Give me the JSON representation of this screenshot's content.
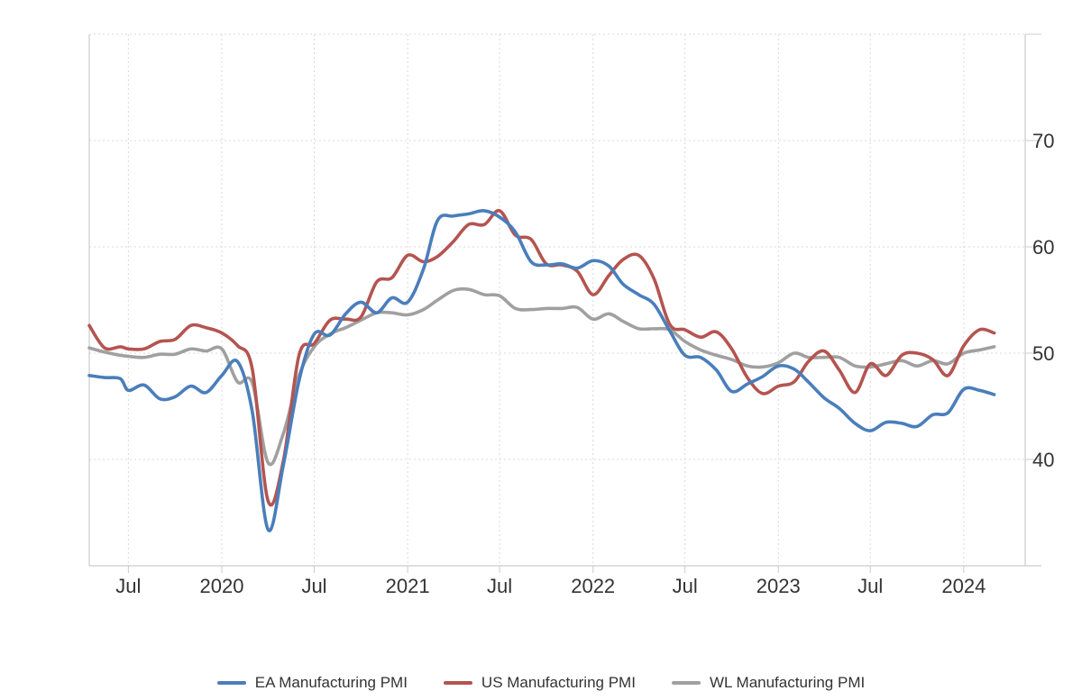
{
  "chart_data": {
    "type": "line",
    "title": "",
    "xlabel": "",
    "ylabel": "",
    "x_range": [
      "2019-04-15",
      "2024-05-01"
    ],
    "ylim": [
      30,
      80
    ],
    "grid": true,
    "legend_position": "bottom-center",
    "x_ticks": [
      {
        "date": "2019-07-01",
        "label": "Jul"
      },
      {
        "date": "2020-01-01",
        "label": "2020"
      },
      {
        "date": "2020-07-01",
        "label": "Jul"
      },
      {
        "date": "2021-01-01",
        "label": "2021"
      },
      {
        "date": "2021-07-01",
        "label": "Jul"
      },
      {
        "date": "2022-01-01",
        "label": "2022"
      },
      {
        "date": "2022-07-01",
        "label": "Jul"
      },
      {
        "date": "2023-01-01",
        "label": "2023"
      },
      {
        "date": "2023-07-01",
        "label": "Jul"
      },
      {
        "date": "2024-01-01",
        "label": "2024"
      }
    ],
    "y_ticks": [
      {
        "value": 40,
        "label": "40"
      },
      {
        "value": 50,
        "label": "50"
      },
      {
        "value": 60,
        "label": "60"
      },
      {
        "value": 70,
        "label": "70"
      }
    ],
    "series": [
      {
        "name": "EA Manufacturing PMI",
        "color": "#4a7ebb",
        "points": [
          [
            "2019-04-15",
            47.9
          ],
          [
            "2019-05-15",
            47.7
          ],
          [
            "2019-06-15",
            47.6
          ],
          [
            "2019-07-01",
            46.5
          ],
          [
            "2019-08-01",
            47.0
          ],
          [
            "2019-09-01",
            45.7
          ],
          [
            "2019-10-01",
            45.9
          ],
          [
            "2019-11-01",
            46.9
          ],
          [
            "2019-12-01",
            46.3
          ],
          [
            "2020-01-01",
            47.9
          ],
          [
            "2020-02-01",
            49.2
          ],
          [
            "2020-03-01",
            44.5
          ],
          [
            "2020-04-01",
            33.4
          ],
          [
            "2020-05-01",
            39.4
          ],
          [
            "2020-06-01",
            47.4
          ],
          [
            "2020-07-01",
            51.8
          ],
          [
            "2020-08-01",
            51.7
          ],
          [
            "2020-09-01",
            53.7
          ],
          [
            "2020-10-01",
            54.8
          ],
          [
            "2020-11-01",
            53.8
          ],
          [
            "2020-12-01",
            55.2
          ],
          [
            "2021-01-01",
            54.8
          ],
          [
            "2021-02-01",
            57.9
          ],
          [
            "2021-03-01",
            62.5
          ],
          [
            "2021-04-01",
            62.9
          ],
          [
            "2021-05-01",
            63.1
          ],
          [
            "2021-06-01",
            63.4
          ],
          [
            "2021-07-01",
            62.8
          ],
          [
            "2021-08-01",
            61.4
          ],
          [
            "2021-09-01",
            58.6
          ],
          [
            "2021-10-01",
            58.3
          ],
          [
            "2021-11-01",
            58.4
          ],
          [
            "2021-12-01",
            58.0
          ],
          [
            "2022-01-01",
            58.7
          ],
          [
            "2022-02-01",
            58.2
          ],
          [
            "2022-03-01",
            56.5
          ],
          [
            "2022-04-01",
            55.5
          ],
          [
            "2022-05-01",
            54.6
          ],
          [
            "2022-06-01",
            52.1
          ],
          [
            "2022-07-01",
            49.8
          ],
          [
            "2022-08-01",
            49.6
          ],
          [
            "2022-09-01",
            48.4
          ],
          [
            "2022-10-01",
            46.4
          ],
          [
            "2022-11-01",
            47.1
          ],
          [
            "2022-12-01",
            47.8
          ],
          [
            "2023-01-01",
            48.8
          ],
          [
            "2023-02-01",
            48.5
          ],
          [
            "2023-03-01",
            47.3
          ],
          [
            "2023-04-01",
            45.8
          ],
          [
            "2023-05-01",
            44.8
          ],
          [
            "2023-06-01",
            43.4
          ],
          [
            "2023-07-01",
            42.7
          ],
          [
            "2023-08-01",
            43.5
          ],
          [
            "2023-09-01",
            43.4
          ],
          [
            "2023-10-01",
            43.1
          ],
          [
            "2023-11-01",
            44.2
          ],
          [
            "2023-12-01",
            44.4
          ],
          [
            "2024-01-01",
            46.6
          ],
          [
            "2024-02-01",
            46.5
          ],
          [
            "2024-03-01",
            46.1
          ]
        ]
      },
      {
        "name": "US Manufacturing PMI",
        "color": "#b45450",
        "points": [
          [
            "2019-04-15",
            52.6
          ],
          [
            "2019-05-15",
            50.5
          ],
          [
            "2019-06-15",
            50.6
          ],
          [
            "2019-07-01",
            50.4
          ],
          [
            "2019-08-01",
            50.4
          ],
          [
            "2019-09-01",
            51.1
          ],
          [
            "2019-10-01",
            51.3
          ],
          [
            "2019-11-01",
            52.6
          ],
          [
            "2019-12-01",
            52.4
          ],
          [
            "2020-01-01",
            51.9
          ],
          [
            "2020-02-01",
            50.7
          ],
          [
            "2020-03-01",
            48.5
          ],
          [
            "2020-04-01",
            36.1
          ],
          [
            "2020-05-01",
            39.8
          ],
          [
            "2020-06-01",
            49.8
          ],
          [
            "2020-07-01",
            50.9
          ],
          [
            "2020-08-01",
            53.1
          ],
          [
            "2020-09-01",
            53.2
          ],
          [
            "2020-10-01",
            53.4
          ],
          [
            "2020-11-01",
            56.7
          ],
          [
            "2020-12-01",
            57.1
          ],
          [
            "2021-01-01",
            59.2
          ],
          [
            "2021-02-01",
            58.6
          ],
          [
            "2021-03-01",
            59.1
          ],
          [
            "2021-04-01",
            60.5
          ],
          [
            "2021-05-01",
            62.1
          ],
          [
            "2021-06-01",
            62.1
          ],
          [
            "2021-07-01",
            63.4
          ],
          [
            "2021-08-01",
            61.1
          ],
          [
            "2021-09-01",
            60.7
          ],
          [
            "2021-10-01",
            58.4
          ],
          [
            "2021-11-01",
            58.3
          ],
          [
            "2021-12-01",
            57.7
          ],
          [
            "2022-01-01",
            55.5
          ],
          [
            "2022-02-01",
            57.3
          ],
          [
            "2022-03-01",
            58.8
          ],
          [
            "2022-04-01",
            59.2
          ],
          [
            "2022-05-01",
            57.0
          ],
          [
            "2022-06-01",
            52.7
          ],
          [
            "2022-07-01",
            52.2
          ],
          [
            "2022-08-01",
            51.5
          ],
          [
            "2022-09-01",
            52.0
          ],
          [
            "2022-10-01",
            50.4
          ],
          [
            "2022-11-01",
            47.7
          ],
          [
            "2022-12-01",
            46.2
          ],
          [
            "2023-01-01",
            46.9
          ],
          [
            "2023-02-01",
            47.3
          ],
          [
            "2023-03-01",
            49.2
          ],
          [
            "2023-04-01",
            50.2
          ],
          [
            "2023-05-01",
            48.4
          ],
          [
            "2023-06-01",
            46.3
          ],
          [
            "2023-07-01",
            49.0
          ],
          [
            "2023-08-01",
            47.9
          ],
          [
            "2023-09-01",
            49.8
          ],
          [
            "2023-10-01",
            50.0
          ],
          [
            "2023-11-01",
            49.4
          ],
          [
            "2023-12-01",
            47.9
          ],
          [
            "2024-01-01",
            50.7
          ],
          [
            "2024-02-01",
            52.2
          ],
          [
            "2024-03-01",
            51.9
          ]
        ]
      },
      {
        "name": "WL Manufacturing PMI",
        "color": "#a0a0a0",
        "points": [
          [
            "2019-04-15",
            50.5
          ],
          [
            "2019-05-15",
            50.1
          ],
          [
            "2019-06-15",
            49.8
          ],
          [
            "2019-07-01",
            49.7
          ],
          [
            "2019-08-01",
            49.6
          ],
          [
            "2019-09-01",
            49.9
          ],
          [
            "2019-10-01",
            49.9
          ],
          [
            "2019-11-01",
            50.4
          ],
          [
            "2019-12-01",
            50.2
          ],
          [
            "2020-01-01",
            50.4
          ],
          [
            "2020-02-01",
            47.3
          ],
          [
            "2020-03-01",
            47.2
          ],
          [
            "2020-04-01",
            39.7
          ],
          [
            "2020-05-01",
            42.4
          ],
          [
            "2020-06-01",
            47.9
          ],
          [
            "2020-07-01",
            50.6
          ],
          [
            "2020-08-01",
            51.8
          ],
          [
            "2020-09-01",
            52.4
          ],
          [
            "2020-10-01",
            53.1
          ],
          [
            "2020-11-01",
            53.8
          ],
          [
            "2020-12-01",
            53.8
          ],
          [
            "2021-01-01",
            53.6
          ],
          [
            "2021-02-01",
            54.1
          ],
          [
            "2021-03-01",
            55.0
          ],
          [
            "2021-04-01",
            55.9
          ],
          [
            "2021-05-01",
            56.0
          ],
          [
            "2021-06-01",
            55.5
          ],
          [
            "2021-07-01",
            55.4
          ],
          [
            "2021-08-01",
            54.2
          ],
          [
            "2021-09-01",
            54.1
          ],
          [
            "2021-10-01",
            54.2
          ],
          [
            "2021-11-01",
            54.2
          ],
          [
            "2021-12-01",
            54.3
          ],
          [
            "2022-01-01",
            53.2
          ],
          [
            "2022-02-01",
            53.7
          ],
          [
            "2022-03-01",
            53.0
          ],
          [
            "2022-04-01",
            52.3
          ],
          [
            "2022-05-01",
            52.3
          ],
          [
            "2022-06-01",
            52.2
          ],
          [
            "2022-07-01",
            51.1
          ],
          [
            "2022-08-01",
            50.3
          ],
          [
            "2022-09-01",
            49.8
          ],
          [
            "2022-10-01",
            49.4
          ],
          [
            "2022-11-01",
            48.8
          ],
          [
            "2022-12-01",
            48.7
          ],
          [
            "2023-01-01",
            49.1
          ],
          [
            "2023-02-01",
            50.0
          ],
          [
            "2023-03-01",
            49.6
          ],
          [
            "2023-04-01",
            49.6
          ],
          [
            "2023-05-01",
            49.6
          ],
          [
            "2023-06-01",
            48.8
          ],
          [
            "2023-07-01",
            48.7
          ],
          [
            "2023-08-01",
            49.0
          ],
          [
            "2023-09-01",
            49.3
          ],
          [
            "2023-10-01",
            48.8
          ],
          [
            "2023-11-01",
            49.3
          ],
          [
            "2023-12-01",
            49.0
          ],
          [
            "2024-01-01",
            50.0
          ],
          [
            "2024-02-01",
            50.3
          ],
          [
            "2024-03-01",
            50.6
          ]
        ]
      }
    ]
  }
}
